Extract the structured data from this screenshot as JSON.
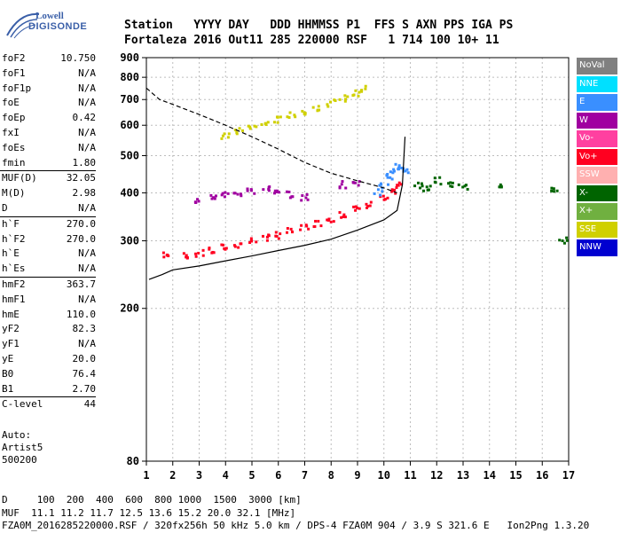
{
  "logo": {
    "line1": "Lowell",
    "line2": "DIGISONDE"
  },
  "header": {
    "labels": "Station   YYYY DAY   DDD HHMMSS P1  FFS S AXN PPS IGA PS",
    "values": "Fortaleza 2016 Out11 285 220000 RSF   1 714 100 10+ 11"
  },
  "parameters": [
    [
      [
        "foF2",
        "10.750"
      ],
      [
        "foF1",
        "N/A"
      ],
      [
        "foF1p",
        "N/A"
      ],
      [
        "foE",
        "N/A"
      ],
      [
        "foEp",
        "0.42"
      ],
      [
        "fxI",
        "N/A"
      ],
      [
        "foEs",
        "N/A"
      ],
      [
        "fmin",
        "1.80"
      ]
    ],
    [
      [
        "MUF(D)",
        "32.05"
      ],
      [
        "M(D)",
        "2.98"
      ],
      [
        "D",
        "N/A"
      ]
    ],
    [
      [
        "h`F",
        "270.0"
      ],
      [
        "h`F2",
        "270.0"
      ],
      [
        "h`E",
        "N/A"
      ],
      [
        "h`Es",
        "N/A"
      ]
    ],
    [
      [
        "hmF2",
        "363.7"
      ],
      [
        "hmF1",
        "N/A"
      ],
      [
        "hmE",
        "110.0"
      ],
      [
        "yF2",
        "82.3"
      ],
      [
        "yF1",
        "N/A"
      ],
      [
        "yE",
        "20.0"
      ],
      [
        "B0",
        "76.4"
      ],
      [
        "B1",
        "2.70"
      ]
    ],
    [
      [
        "C-level",
        "44"
      ]
    ]
  ],
  "auto": {
    "line1": "Auto:",
    "line2": "Artist5",
    "line3": "500200"
  },
  "legend": [
    {
      "label": "NoVal",
      "color": "#808080"
    },
    {
      "label": "NNE",
      "color": "#00e0ff"
    },
    {
      "label": "E",
      "color": "#3a8fff"
    },
    {
      "label": "W",
      "color": "#a000a0"
    },
    {
      "label": "Vo-",
      "color": "#ff40a0"
    },
    {
      "label": "Vo+",
      "color": "#ff0020"
    },
    {
      "label": "SSW",
      "color": "#ffb0b0"
    },
    {
      "label": "X-",
      "color": "#006400"
    },
    {
      "label": "X+",
      "color": "#70b040"
    },
    {
      "label": "SSE",
      "color": "#d0d000"
    },
    {
      "label": "NNW",
      "color": "#0000d0"
    }
  ],
  "footer": {
    "line1": "D     100  200  400  600  800 1000  1500  3000 [km]",
    "line2": "MUF  11.1 11.2 11.7 12.5 13.6 15.2 20.0 32.1 [MHz]",
    "line3": "FZA0M_2016285220000.RSF / 320fx256h 50 kHz 5.0 km / DPS-4 FZA0M 904 / 3.9 S 321.6 E   Ion2Png 1.3.20"
  },
  "chart_data": {
    "type": "scatter",
    "title": "",
    "xlabel": "",
    "ylabel": "",
    "xlim": [
      1,
      17
    ],
    "ylim": [
      80,
      900
    ],
    "y_scale": "log",
    "x_ticks": [
      1,
      2,
      3,
      4,
      5,
      6,
      7,
      8,
      9,
      10,
      11,
      12,
      13,
      14,
      15,
      16,
      17
    ],
    "y_ticks": [
      80,
      200,
      300,
      400,
      500,
      600,
      700,
      800,
      900
    ],
    "grid": true,
    "series": [
      {
        "name": "Vo+",
        "color": "#ff0020",
        "x": [
          1.8,
          2.5,
          3.0,
          3.5,
          4.0,
          4.5,
          5.0,
          5.5,
          6.0,
          6.5,
          7.0,
          7.5,
          8.0,
          8.5,
          9.0,
          9.5,
          10.0,
          10.3,
          10.5
        ],
        "y": [
          275,
          275,
          278,
          282,
          288,
          293,
          300,
          305,
          310,
          317,
          325,
          333,
          342,
          352,
          362,
          372,
          385,
          400,
          420
        ]
      },
      {
        "name": "E",
        "color": "#3a8fff",
        "x": [
          9.8,
          10.0,
          10.2,
          10.4,
          10.6,
          10.8
        ],
        "y": [
          400,
          420,
          440,
          460,
          470,
          460
        ]
      },
      {
        "name": "SSE",
        "color": "#d0d000",
        "x": [
          4.0,
          4.5,
          5.0,
          5.5,
          6.0,
          6.5,
          7.0,
          7.5,
          8.0,
          8.5,
          9.0,
          9.3
        ],
        "y": [
          560,
          578,
          592,
          605,
          620,
          635,
          652,
          668,
          685,
          705,
          725,
          745
        ]
      },
      {
        "name": "W",
        "color": "#a000a0",
        "x": [
          3.0,
          3.5,
          4.0,
          4.5,
          5.0,
          5.5,
          6.0,
          6.5,
          7.0,
          8.5,
          9.0
        ],
        "y": [
          380,
          390,
          395,
          400,
          405,
          410,
          400,
          395,
          390,
          420,
          425
        ]
      },
      {
        "name": "X-",
        "color": "#006400",
        "x": [
          11.3,
          11.6,
          12.0,
          12.5,
          13.0,
          14.5,
          16.5,
          16.8
        ],
        "y": [
          420,
          410,
          430,
          420,
          415,
          420,
          410,
          300
        ]
      }
    ],
    "lines": [
      {
        "x": [
          1.1,
          1.6,
          2.0,
          3.0,
          4.0,
          5.0,
          6.0,
          7.0,
          8.0,
          9.0,
          10.0,
          10.5,
          10.7,
          10.8
        ],
        "y": [
          238,
          245,
          252,
          258,
          266,
          274,
          283,
          292,
          303,
          320,
          340,
          360,
          420,
          560
        ]
      },
      {
        "x": [
          1.0,
          1.5,
          2.0,
          3.0,
          4.0,
          5.0,
          6.0,
          7.0,
          8.0,
          9.0,
          10.0,
          10.5
        ],
        "y": [
          750,
          700,
          680,
          640,
          600,
          560,
          520,
          480,
          450,
          430,
          412,
          400
        ]
      }
    ]
  }
}
